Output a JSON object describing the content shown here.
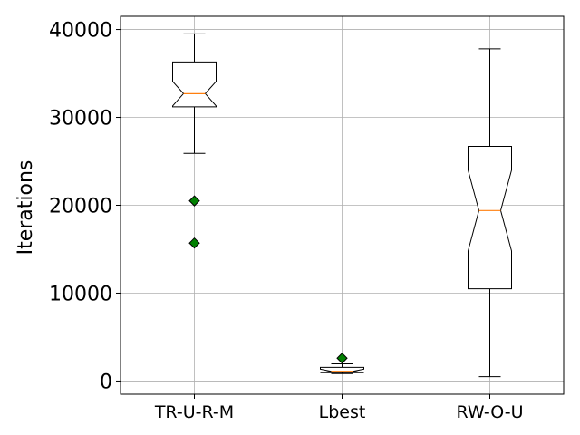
{
  "chart_data": {
    "type": "box",
    "title": "",
    "xlabel": "",
    "ylabel": "Iterations",
    "ylim": [
      -1500,
      41500
    ],
    "yticks": [
      0,
      10000,
      20000,
      30000,
      40000
    ],
    "ytick_labels": [
      "0",
      "10000",
      "20000",
      "30000",
      "40000"
    ],
    "grid": true,
    "notched": true,
    "colors": {
      "box": "#000000",
      "median": "#ff7f0e",
      "flier_fill": "#008000",
      "grid": "#b0b0b0"
    },
    "categories": [
      "TR-U-R-M",
      "Lbest",
      "RW-O-U"
    ],
    "boxes": [
      {
        "label": "TR-U-R-M",
        "whisker_low": 25900,
        "q1": 31200,
        "median": 32700,
        "q3": 36300,
        "whisker_high": 39500,
        "notch_low": 31300,
        "notch_high": 34100,
        "fliers": [
          20500,
          15700
        ]
      },
      {
        "label": "Lbest",
        "whisker_low": 850,
        "q1": 950,
        "median": 1100,
        "q3": 1550,
        "whisker_high": 1950,
        "notch_low": 850,
        "notch_high": 1350,
        "fliers": [
          2600
        ]
      },
      {
        "label": "RW-O-U",
        "whisker_low": 500,
        "q1": 10500,
        "median": 19400,
        "q3": 26700,
        "whisker_high": 37800,
        "notch_low": 14800,
        "notch_high": 24000,
        "fliers": []
      }
    ]
  }
}
